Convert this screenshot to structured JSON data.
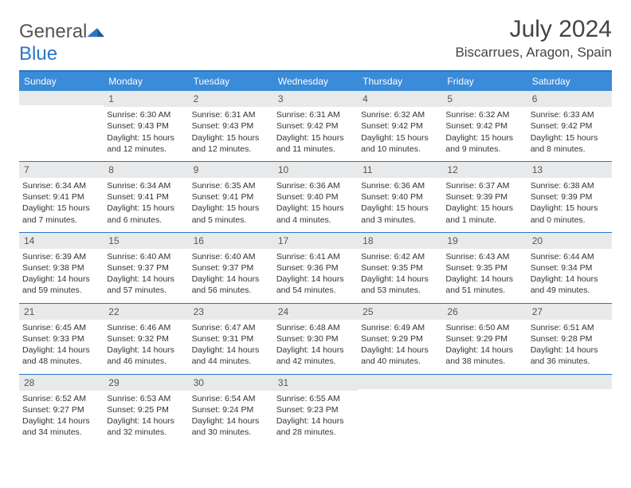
{
  "logo": {
    "word1": "General",
    "word2": "Blue"
  },
  "title": "July 2024",
  "location": "Biscarrues, Aragon, Spain",
  "colors": {
    "header_bg": "#3a8bd8",
    "rule": "#2a77c4",
    "daynum_bg": "#e8e9ea",
    "text": "#333333"
  },
  "day_labels": [
    "Sunday",
    "Monday",
    "Tuesday",
    "Wednesday",
    "Thursday",
    "Friday",
    "Saturday"
  ],
  "grid": {
    "columns": 7,
    "first_weekday_index": 1,
    "days_in_month": 31
  },
  "days": [
    {
      "n": 1,
      "sunrise": "6:30 AM",
      "sunset": "9:43 PM",
      "daylight": "15 hours and 12 minutes."
    },
    {
      "n": 2,
      "sunrise": "6:31 AM",
      "sunset": "9:43 PM",
      "daylight": "15 hours and 12 minutes."
    },
    {
      "n": 3,
      "sunrise": "6:31 AM",
      "sunset": "9:42 PM",
      "daylight": "15 hours and 11 minutes."
    },
    {
      "n": 4,
      "sunrise": "6:32 AM",
      "sunset": "9:42 PM",
      "daylight": "15 hours and 10 minutes."
    },
    {
      "n": 5,
      "sunrise": "6:32 AM",
      "sunset": "9:42 PM",
      "daylight": "15 hours and 9 minutes."
    },
    {
      "n": 6,
      "sunrise": "6:33 AM",
      "sunset": "9:42 PM",
      "daylight": "15 hours and 8 minutes."
    },
    {
      "n": 7,
      "sunrise": "6:34 AM",
      "sunset": "9:41 PM",
      "daylight": "15 hours and 7 minutes."
    },
    {
      "n": 8,
      "sunrise": "6:34 AM",
      "sunset": "9:41 PM",
      "daylight": "15 hours and 6 minutes."
    },
    {
      "n": 9,
      "sunrise": "6:35 AM",
      "sunset": "9:41 PM",
      "daylight": "15 hours and 5 minutes."
    },
    {
      "n": 10,
      "sunrise": "6:36 AM",
      "sunset": "9:40 PM",
      "daylight": "15 hours and 4 minutes."
    },
    {
      "n": 11,
      "sunrise": "6:36 AM",
      "sunset": "9:40 PM",
      "daylight": "15 hours and 3 minutes."
    },
    {
      "n": 12,
      "sunrise": "6:37 AM",
      "sunset": "9:39 PM",
      "daylight": "15 hours and 1 minute."
    },
    {
      "n": 13,
      "sunrise": "6:38 AM",
      "sunset": "9:39 PM",
      "daylight": "15 hours and 0 minutes."
    },
    {
      "n": 14,
      "sunrise": "6:39 AM",
      "sunset": "9:38 PM",
      "daylight": "14 hours and 59 minutes."
    },
    {
      "n": 15,
      "sunrise": "6:40 AM",
      "sunset": "9:37 PM",
      "daylight": "14 hours and 57 minutes."
    },
    {
      "n": 16,
      "sunrise": "6:40 AM",
      "sunset": "9:37 PM",
      "daylight": "14 hours and 56 minutes."
    },
    {
      "n": 17,
      "sunrise": "6:41 AM",
      "sunset": "9:36 PM",
      "daylight": "14 hours and 54 minutes."
    },
    {
      "n": 18,
      "sunrise": "6:42 AM",
      "sunset": "9:35 PM",
      "daylight": "14 hours and 53 minutes."
    },
    {
      "n": 19,
      "sunrise": "6:43 AM",
      "sunset": "9:35 PM",
      "daylight": "14 hours and 51 minutes."
    },
    {
      "n": 20,
      "sunrise": "6:44 AM",
      "sunset": "9:34 PM",
      "daylight": "14 hours and 49 minutes."
    },
    {
      "n": 21,
      "sunrise": "6:45 AM",
      "sunset": "9:33 PM",
      "daylight": "14 hours and 48 minutes."
    },
    {
      "n": 22,
      "sunrise": "6:46 AM",
      "sunset": "9:32 PM",
      "daylight": "14 hours and 46 minutes."
    },
    {
      "n": 23,
      "sunrise": "6:47 AM",
      "sunset": "9:31 PM",
      "daylight": "14 hours and 44 minutes."
    },
    {
      "n": 24,
      "sunrise": "6:48 AM",
      "sunset": "9:30 PM",
      "daylight": "14 hours and 42 minutes."
    },
    {
      "n": 25,
      "sunrise": "6:49 AM",
      "sunset": "9:29 PM",
      "daylight": "14 hours and 40 minutes."
    },
    {
      "n": 26,
      "sunrise": "6:50 AM",
      "sunset": "9:29 PM",
      "daylight": "14 hours and 38 minutes."
    },
    {
      "n": 27,
      "sunrise": "6:51 AM",
      "sunset": "9:28 PM",
      "daylight": "14 hours and 36 minutes."
    },
    {
      "n": 28,
      "sunrise": "6:52 AM",
      "sunset": "9:27 PM",
      "daylight": "14 hours and 34 minutes."
    },
    {
      "n": 29,
      "sunrise": "6:53 AM",
      "sunset": "9:25 PM",
      "daylight": "14 hours and 32 minutes."
    },
    {
      "n": 30,
      "sunrise": "6:54 AM",
      "sunset": "9:24 PM",
      "daylight": "14 hours and 30 minutes."
    },
    {
      "n": 31,
      "sunrise": "6:55 AM",
      "sunset": "9:23 PM",
      "daylight": "14 hours and 28 minutes."
    }
  ],
  "labels": {
    "sunrise_prefix": "Sunrise: ",
    "sunset_prefix": "Sunset: ",
    "daylight_prefix": "Daylight: "
  }
}
